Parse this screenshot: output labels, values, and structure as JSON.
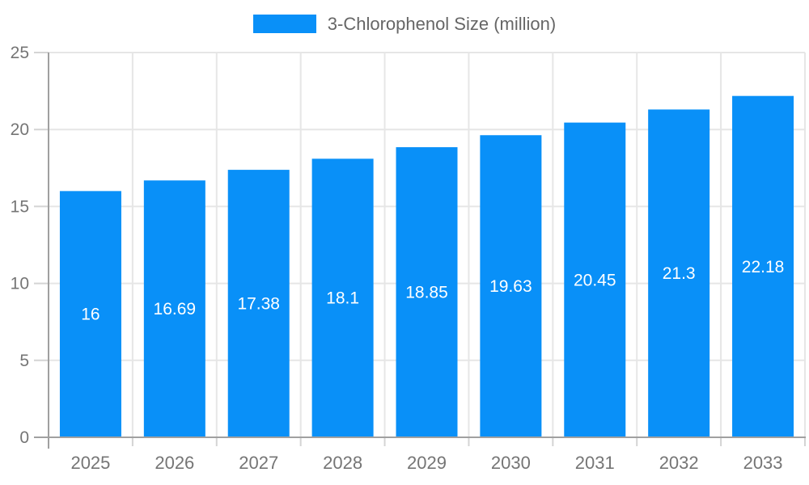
{
  "chart_data": {
    "type": "bar",
    "title": "3-Chlorophenol Size (million)",
    "categories": [
      "2025",
      "2026",
      "2027",
      "2028",
      "2029",
      "2030",
      "2031",
      "2032",
      "2033"
    ],
    "values": [
      16,
      16.69,
      17.38,
      18.1,
      18.85,
      19.63,
      20.45,
      21.3,
      22.18
    ],
    "value_labels": [
      "16",
      "16.69",
      "17.38",
      "18.1",
      "18.85",
      "19.63",
      "20.45",
      "21.3",
      "22.18"
    ],
    "xlabel": "",
    "ylabel": "",
    "ylim": [
      0,
      25
    ],
    "yticks": [
      0,
      5,
      10,
      15,
      20,
      25
    ],
    "grid": true,
    "legend_position": "top",
    "colors": {
      "bar": "#0990f8",
      "grid": "#e6e6e6",
      "axis": "#a0a0a0",
      "tick": "#d4d4d4",
      "axis_label": "#757575",
      "legend_text": "#666666",
      "value_label": "#ffffff",
      "background": "#ffffff"
    }
  }
}
